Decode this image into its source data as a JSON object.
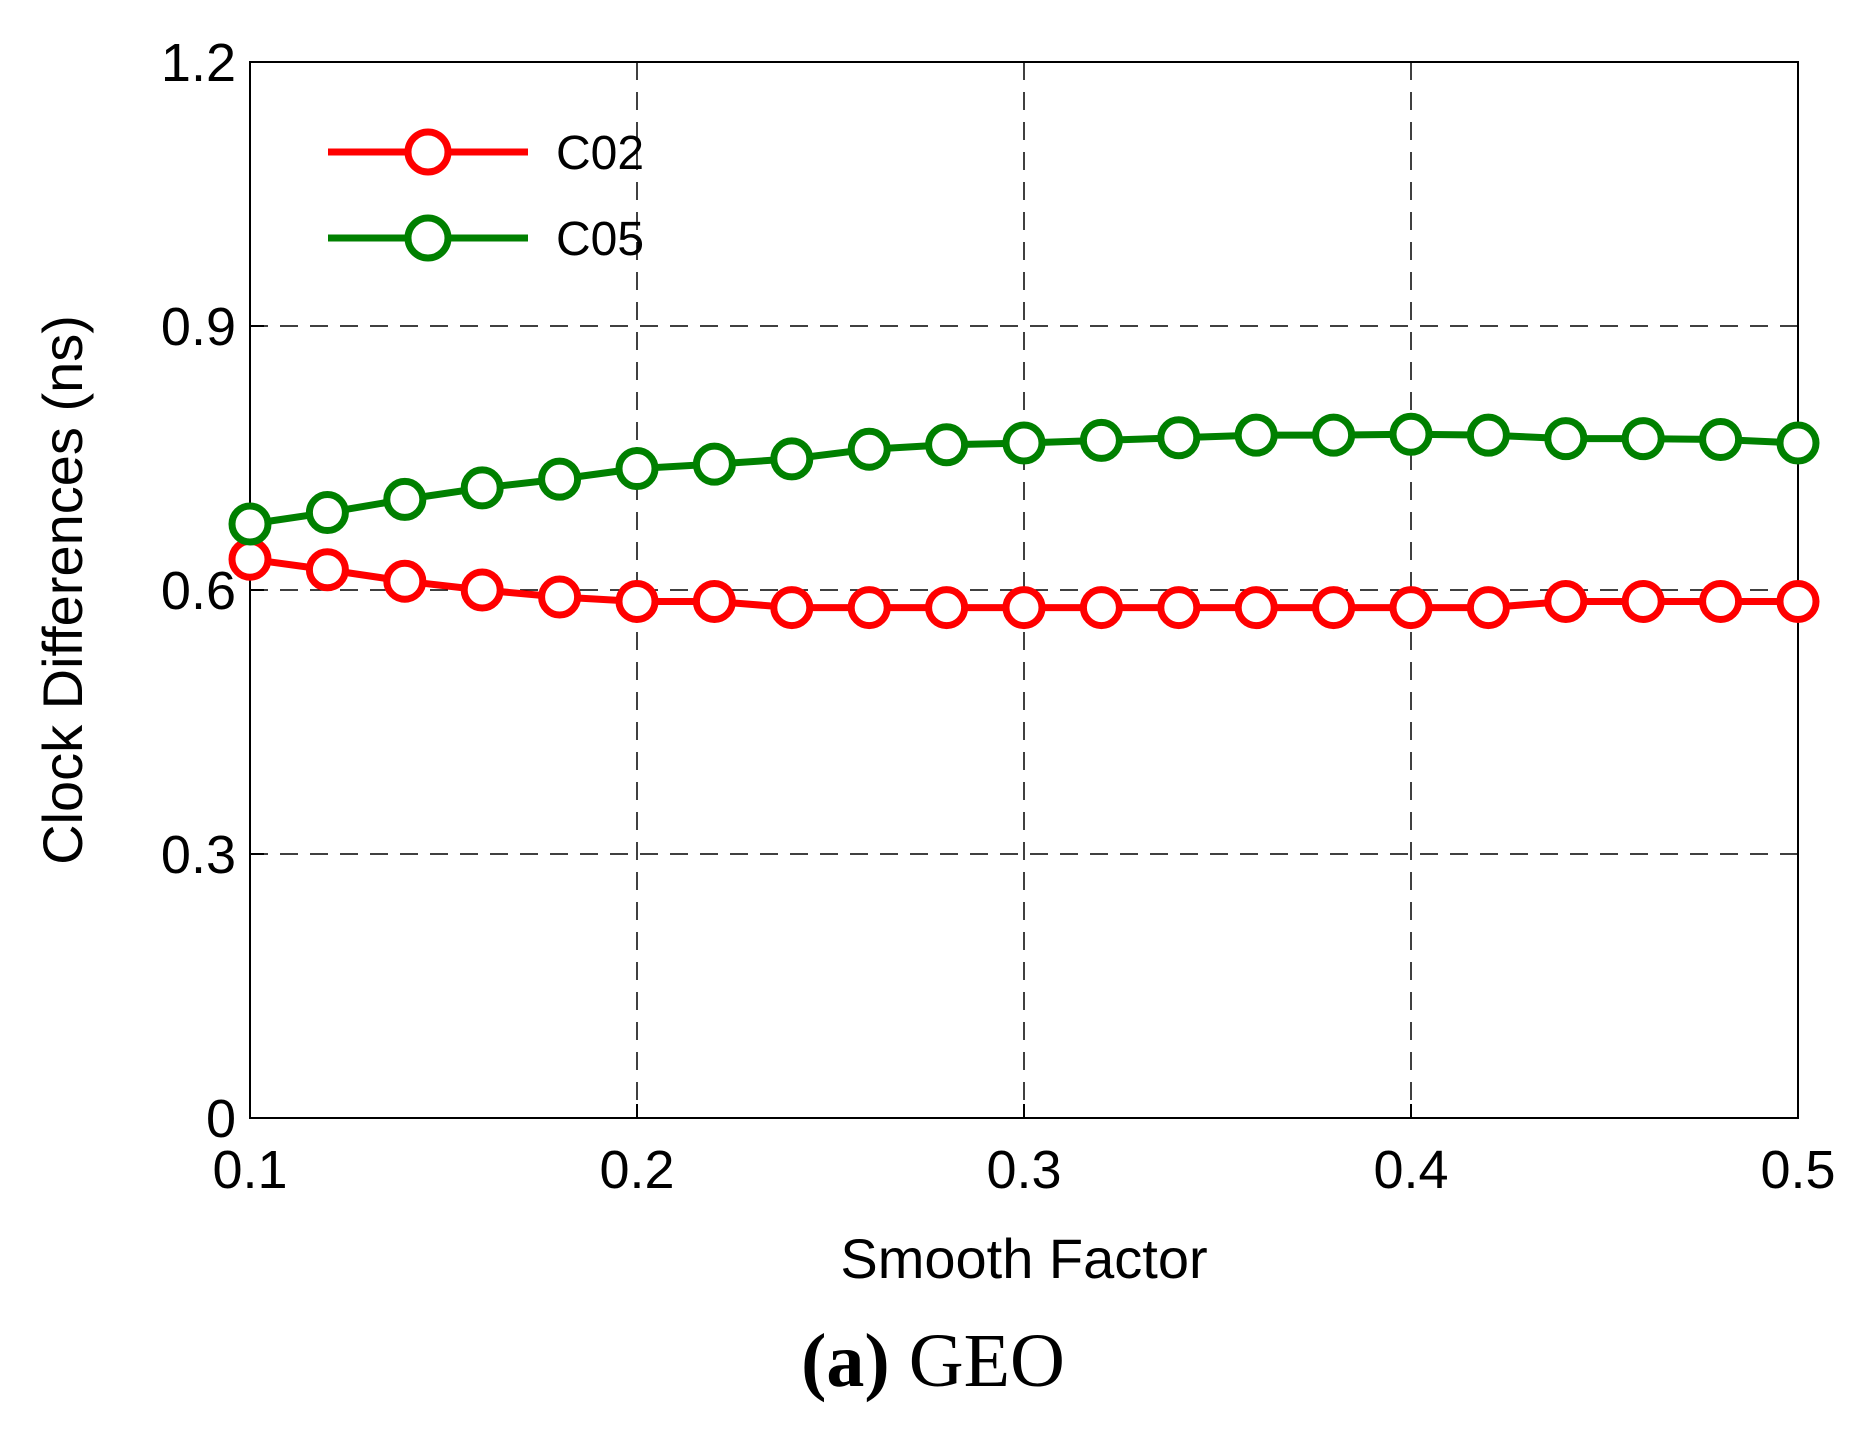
{
  "chart_data": {
    "type": "line",
    "xlabel": "Smooth Factor",
    "ylabel": "Clock Differences (ns)",
    "xlim": [
      0.1,
      0.5
    ],
    "ylim": [
      0,
      1.2
    ],
    "xticks": [
      0.1,
      0.2,
      0.3,
      0.4,
      0.5
    ],
    "xtick_labels": [
      "0.1",
      "0.2",
      "0.3",
      "0.4",
      "0.5"
    ],
    "yticks": [
      0,
      0.3,
      0.6,
      0.9,
      1.2
    ],
    "ytick_labels": [
      "0",
      "0.3",
      "0.6",
      "0.9",
      "1.2"
    ],
    "grid": true,
    "legend_position": "top-left",
    "x": [
      0.1,
      0.12,
      0.14,
      0.16,
      0.18,
      0.2,
      0.22,
      0.24,
      0.26,
      0.28,
      0.3,
      0.32,
      0.34,
      0.36,
      0.38,
      0.4,
      0.42,
      0.44,
      0.46,
      0.48,
      0.5
    ],
    "series": [
      {
        "name": "C02",
        "color": "#ff0000",
        "marker": "circle-open",
        "values": [
          0.635,
          0.623,
          0.61,
          0.6,
          0.592,
          0.587,
          0.587,
          0.58,
          0.58,
          0.58,
          0.58,
          0.58,
          0.58,
          0.58,
          0.58,
          0.58,
          0.58,
          0.587,
          0.587,
          0.587,
          0.587
        ]
      },
      {
        "name": "C05",
        "color": "#008000",
        "marker": "circle-open",
        "values": [
          0.675,
          0.688,
          0.703,
          0.716,
          0.726,
          0.738,
          0.743,
          0.749,
          0.76,
          0.765,
          0.767,
          0.77,
          0.773,
          0.776,
          0.776,
          0.777,
          0.776,
          0.772,
          0.772,
          0.771,
          0.767
        ]
      }
    ]
  },
  "caption": {
    "bold": "(a)",
    "text": " GEO"
  }
}
